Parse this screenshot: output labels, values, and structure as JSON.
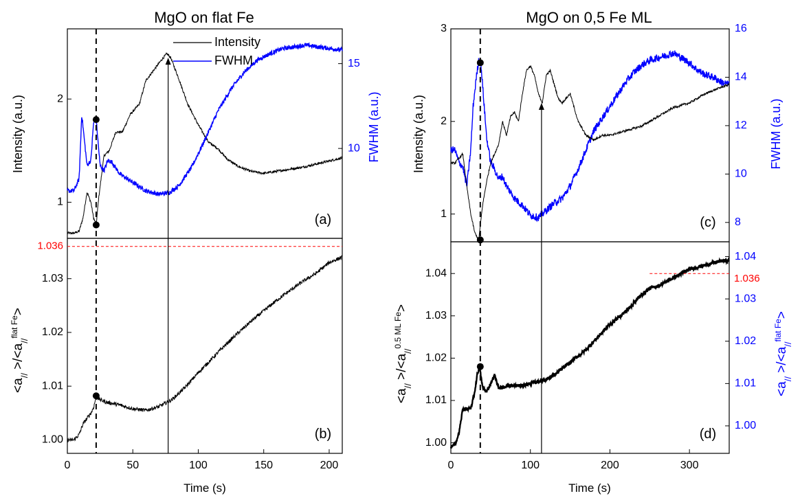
{
  "chart_data": [
    {
      "id": "a",
      "type": "line",
      "title": "MgO on flat Fe",
      "panel_label": "(a)",
      "ylabel": "Intensity  (a.u.)",
      "y2label": "FWHM  (a.u.)",
      "xlim": [
        0,
        210
      ],
      "ylim": [
        0.65,
        2.68
      ],
      "y2lim": [
        4.7,
        17.05
      ],
      "yticks": [
        "1",
        "2"
      ],
      "y2ticks": [
        "10",
        "15"
      ],
      "legend": {
        "position": "top-center",
        "entries": [
          "Intensity",
          "FWHM"
        ]
      },
      "series": [
        {
          "name": "Intensity",
          "axis": "left",
          "color": "#000000",
          "noise": 0.012,
          "x": [
            0,
            5,
            9,
            12,
            15,
            18,
            20,
            22,
            24,
            28,
            32,
            37,
            42,
            48,
            55,
            60,
            66,
            72,
            76,
            79,
            85,
            92,
            100,
            108,
            115,
            122,
            130,
            140,
            150,
            160,
            170,
            180,
            190,
            200,
            210
          ],
          "y": [
            0.7,
            0.7,
            0.72,
            0.85,
            1.1,
            1.0,
            0.85,
            0.78,
            1.05,
            1.45,
            1.5,
            1.68,
            1.68,
            1.85,
            1.95,
            2.18,
            2.28,
            2.38,
            2.44,
            2.4,
            2.2,
            1.95,
            1.75,
            1.58,
            1.52,
            1.42,
            1.35,
            1.3,
            1.28,
            1.3,
            1.32,
            1.34,
            1.37,
            1.4,
            1.43
          ]
        },
        {
          "name": "FWHM",
          "axis": "right",
          "color": "#0000ff",
          "noise": 0.13,
          "x": [
            0,
            5,
            9,
            11,
            13,
            15,
            18,
            20,
            22,
            25,
            28,
            31,
            34,
            40,
            50,
            60,
            70,
            78,
            85,
            95,
            105,
            115,
            125,
            135,
            145,
            155,
            165,
            175,
            182,
            190,
            200,
            210
          ],
          "y": [
            7.5,
            7.5,
            8.2,
            12.0,
            10.5,
            9.0,
            9.3,
            11.5,
            11.7,
            9.0,
            8.7,
            9.3,
            9.2,
            8.5,
            8.0,
            7.5,
            7.3,
            7.4,
            7.8,
            8.9,
            10.5,
            12.2,
            13.5,
            14.5,
            15.2,
            15.6,
            15.9,
            16.0,
            16.1,
            16.0,
            15.9,
            15.8
          ]
        }
      ]
    },
    {
      "id": "b",
      "type": "line",
      "panel_label": "(b)",
      "xlabel": "Time  (s)",
      "ylabel": "<a// >/<a//flat Fe>",
      "ylabel_main": "<a",
      "ylabel_sub1": "//",
      "ylabel_mid": " >/<a",
      "ylabel_sub2": "//",
      "ylabel_sup": "flat Fe",
      "ylabel_end": ">",
      "xlim": [
        0,
        210
      ],
      "ylim": [
        0.9975,
        1.0375
      ],
      "xticks": [
        "0",
        "50",
        "100",
        "150",
        "200"
      ],
      "yticks": [
        "1.00",
        "1.01",
        "1.02",
        "1.03"
      ],
      "reference_line": {
        "y": 1.036,
        "label": "1.036",
        "color": "#ff0000"
      },
      "series": [
        {
          "color": "#000000",
          "noise": 0.00035,
          "x": [
            0,
            5,
            9,
            12,
            15,
            18,
            20,
            22,
            25,
            30,
            40,
            50,
            60,
            70,
            80,
            90,
            100,
            110,
            120,
            130,
            140,
            150,
            160,
            170,
            180,
            190,
            200,
            210
          ],
          "y": [
            1.0,
            1.0,
            1.001,
            1.003,
            1.004,
            1.005,
            1.006,
            1.008,
            1.0075,
            1.007,
            1.0065,
            1.0058,
            1.0055,
            1.0062,
            1.0075,
            1.0098,
            1.0125,
            1.015,
            1.0175,
            1.0198,
            1.022,
            1.024,
            1.026,
            1.0278,
            1.0295,
            1.031,
            1.033,
            1.034
          ]
        }
      ]
    },
    {
      "id": "c",
      "type": "line",
      "title": "MgO on 0,5 Fe ML",
      "panel_label": "(c)",
      "ylabel": "Intensity  (a.u.)",
      "y2label": "FWHM  (a.u.)",
      "xlim": [
        0,
        350
      ],
      "ylim": [
        0.7,
        3.0
      ],
      "y2lim": [
        7.2,
        16.0
      ],
      "yticks": [
        "1",
        "2",
        "3"
      ],
      "y2ticks": [
        "8",
        "10",
        "12",
        "14",
        "16"
      ],
      "series": [
        {
          "name": "Intensity",
          "axis": "left",
          "color": "#000000",
          "noise": 0.012,
          "x": [
            0,
            5,
            10,
            15,
            20,
            25,
            30,
            35,
            40,
            45,
            50,
            55,
            60,
            65,
            70,
            75,
            80,
            85,
            90,
            95,
            100,
            105,
            110,
            115,
            120,
            125,
            130,
            135,
            140,
            145,
            150,
            160,
            170,
            180,
            190,
            200,
            220,
            240,
            260,
            280,
            300,
            320,
            340,
            350
          ],
          "y": [
            1.55,
            1.55,
            1.6,
            1.65,
            1.3,
            1.0,
            0.8,
            0.72,
            1.1,
            1.35,
            1.55,
            1.65,
            1.75,
            2.0,
            1.85,
            2.05,
            2.1,
            2.0,
            2.3,
            2.55,
            2.6,
            2.5,
            2.3,
            2.2,
            2.5,
            2.55,
            2.4,
            2.25,
            2.2,
            2.25,
            2.3,
            2.0,
            1.85,
            1.8,
            1.85,
            1.85,
            1.9,
            1.95,
            2.05,
            2.15,
            2.2,
            2.3,
            2.37,
            2.4
          ]
        },
        {
          "name": "FWHM",
          "axis": "right",
          "color": "#0000ff",
          "noise": 0.15,
          "x": [
            0,
            5,
            10,
            15,
            20,
            25,
            28,
            32,
            35,
            38,
            41,
            45,
            50,
            55,
            60,
            65,
            70,
            80,
            90,
            100,
            110,
            120,
            130,
            140,
            150,
            160,
            170,
            180,
            190,
            200,
            210,
            220,
            230,
            240,
            250,
            260,
            270,
            280,
            290,
            300,
            310,
            320,
            330,
            340,
            350
          ],
          "y": [
            11.0,
            11.0,
            10.5,
            10.3,
            9.5,
            11.0,
            12.8,
            14.0,
            14.7,
            14.5,
            13.2,
            11.5,
            10.5,
            10.2,
            9.8,
            9.9,
            9.5,
            9.0,
            8.7,
            8.3,
            8.2,
            8.5,
            8.8,
            9.0,
            9.5,
            10.2,
            11.0,
            11.8,
            12.3,
            12.8,
            13.3,
            13.8,
            14.2,
            14.5,
            14.7,
            14.8,
            14.9,
            15.0,
            14.8,
            14.6,
            14.3,
            14.1,
            14.0,
            13.8,
            13.7
          ]
        }
      ]
    },
    {
      "id": "d",
      "type": "line",
      "panel_label": "(d)",
      "xlabel": "Time  (s)",
      "ylabel": "<a// >/<a//0.5 ML Fe>",
      "ylabel_main": "<a",
      "ylabel_sub1": "//",
      "ylabel_mid": " >/<a",
      "ylabel_sub2": "//",
      "ylabel_sup": "0.5 ML  Fe",
      "ylabel_end": ">",
      "y2label": "<a// >/<a//flat Fe>",
      "y2label_main": "<a",
      "y2label_sub1": "//",
      "y2label_mid": " >/<a",
      "y2label_sub2": "//",
      "y2label_sup": "flat Fe",
      "y2label_end": ">",
      "xlim": [
        0,
        350
      ],
      "ylim": [
        0.9975,
        1.0475
      ],
      "y2lim": [
        0.9935,
        1.0435
      ],
      "xticks": [
        "0",
        "100",
        "200",
        "300"
      ],
      "yticks": [
        "1.00",
        "1.01",
        "1.02",
        "1.03",
        "1.04"
      ],
      "y2ticks": [
        "1.00",
        "1.01",
        "1.02",
        "1.03",
        "1.04"
      ],
      "reference_line": {
        "y2": 1.036,
        "label": "1.036",
        "color": "#ff0000",
        "x_from": 250
      },
      "series": [
        {
          "color": "#000000",
          "noise": 0.0004,
          "bold": true,
          "x": [
            0,
            5,
            10,
            15,
            20,
            25,
            30,
            33,
            36,
            40,
            45,
            50,
            55,
            60,
            65,
            70,
            80,
            90,
            100,
            110,
            120,
            130,
            140,
            150,
            160,
            170,
            180,
            190,
            200,
            210,
            220,
            230,
            240,
            250,
            260,
            270,
            280,
            290,
            300,
            310,
            320,
            330,
            340,
            350
          ],
          "y": [
            0.999,
            0.9995,
            1.002,
            1.008,
            1.008,
            1.008,
            1.012,
            1.016,
            1.018,
            1.013,
            1.012,
            1.014,
            1.016,
            1.013,
            1.013,
            1.0135,
            1.0135,
            1.0135,
            1.014,
            1.0145,
            1.015,
            1.016,
            1.0175,
            1.019,
            1.0205,
            1.022,
            1.024,
            1.026,
            1.028,
            1.0295,
            1.031,
            1.033,
            1.035,
            1.0365,
            1.037,
            1.038,
            1.039,
            1.04,
            1.041,
            1.0415,
            1.042,
            1.0425,
            1.043,
            1.043
          ]
        }
      ]
    }
  ],
  "markers": {
    "a": {
      "dashed_x": 22,
      "dots": [
        {
          "axis": "right",
          "x": 22,
          "y": 11.7
        },
        {
          "axis": "left",
          "x": 22,
          "y": 0.78
        }
      ],
      "arrow_x": 77,
      "arrow_tip_y": 2.4
    },
    "b": {
      "dashed_x": 22,
      "dots": [
        {
          "x": 22,
          "y": 1.0082
        }
      ],
      "arrow_x": 77
    },
    "c": {
      "dashed_x": 37,
      "dots": [
        {
          "axis": "right",
          "x": 37,
          "y": 14.6
        },
        {
          "axis": "left",
          "x": 37,
          "y": 0.72
        }
      ],
      "arrow_x": 114,
      "arrow_tip_y": 2.2
    },
    "d": {
      "dashed_x": 37,
      "dots": [
        {
          "x": 37,
          "y": 1.018
        }
      ],
      "arrow_x": 114
    }
  },
  "colors": {
    "axis": "#000000",
    "intensity": "#000000",
    "fwhm": "#0000ff",
    "reference": "#ff0000",
    "right_axis_d": "#0000ff"
  }
}
